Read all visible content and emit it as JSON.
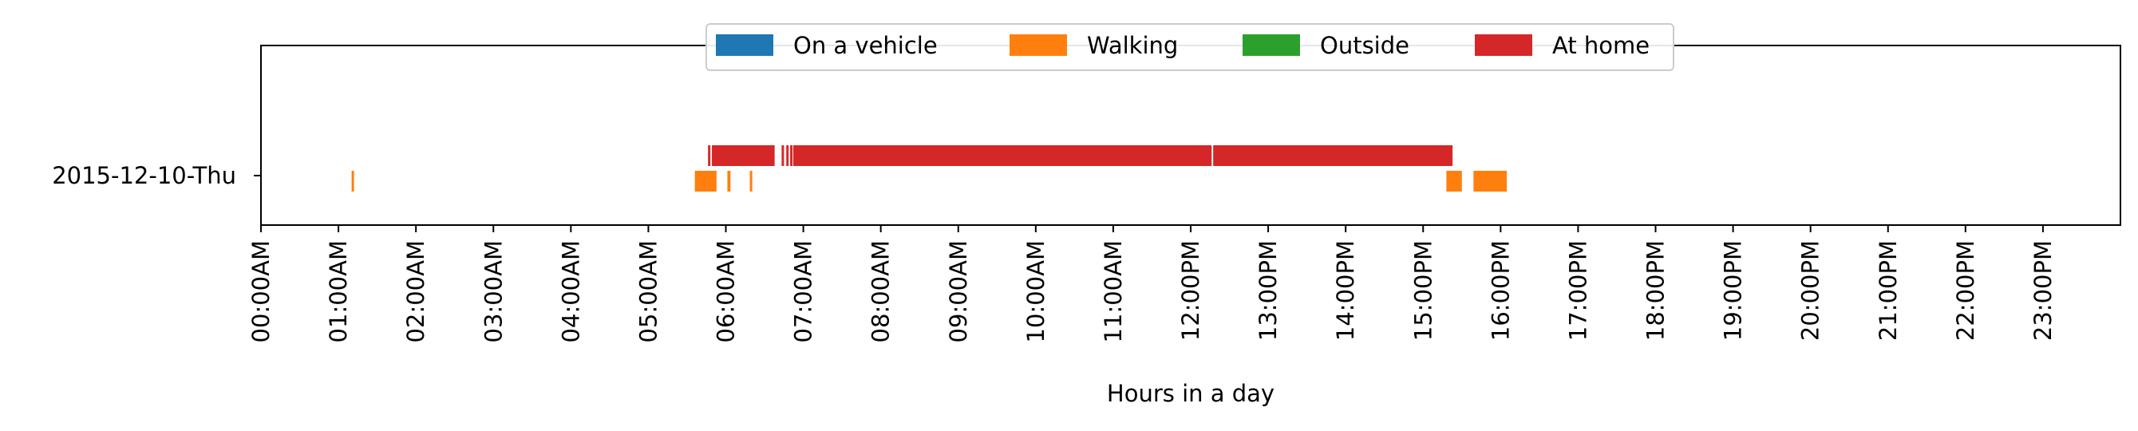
{
  "chart_data": {
    "type": "timeline",
    "xlabel": "Hours in a day",
    "xlim": [
      0,
      24
    ],
    "x_ticks": [
      {
        "value": 0,
        "label": "00:00AM"
      },
      {
        "value": 1,
        "label": "01:00AM"
      },
      {
        "value": 2,
        "label": "02:00AM"
      },
      {
        "value": 3,
        "label": "03:00AM"
      },
      {
        "value": 4,
        "label": "04:00AM"
      },
      {
        "value": 5,
        "label": "05:00AM"
      },
      {
        "value": 6,
        "label": "06:00AM"
      },
      {
        "value": 7,
        "label": "07:00AM"
      },
      {
        "value": 8,
        "label": "08:00AM"
      },
      {
        "value": 9,
        "label": "09:00AM"
      },
      {
        "value": 10,
        "label": "10:00AM"
      },
      {
        "value": 11,
        "label": "11:00AM"
      },
      {
        "value": 12,
        "label": "12:00PM"
      },
      {
        "value": 13,
        "label": "13:00PM"
      },
      {
        "value": 14,
        "label": "14:00PM"
      },
      {
        "value": 15,
        "label": "15:00PM"
      },
      {
        "value": 16,
        "label": "16:00PM"
      },
      {
        "value": 17,
        "label": "17:00PM"
      },
      {
        "value": 18,
        "label": "18:00PM"
      },
      {
        "value": 19,
        "label": "19:00PM"
      },
      {
        "value": 20,
        "label": "20:00PM"
      },
      {
        "value": 21,
        "label": "21:00PM"
      },
      {
        "value": 22,
        "label": "22:00PM"
      },
      {
        "value": 23,
        "label": "23:00PM"
      }
    ],
    "days": [
      "2015-12-10-Thu"
    ],
    "legend_position": "top-center",
    "series": [
      {
        "name": "On a vehicle",
        "color": "#1f77b4",
        "segments": []
      },
      {
        "name": "Walking",
        "color": "#ff7f0e",
        "segments": [
          [
            1.17,
            1.2
          ],
          [
            5.6,
            5.88
          ],
          [
            6.02,
            6.06
          ],
          [
            6.31,
            6.34
          ],
          [
            15.3,
            15.5
          ],
          [
            15.65,
            16.08
          ]
        ]
      },
      {
        "name": "Outside",
        "color": "#2ca02c",
        "segments": []
      },
      {
        "name": "At home",
        "color": "#d62728",
        "segments": [
          [
            5.77,
            5.8
          ],
          [
            5.82,
            6.63
          ],
          [
            6.72,
            6.75
          ],
          [
            6.78,
            6.8
          ],
          [
            6.83,
            6.85
          ],
          [
            6.87,
            12.27
          ],
          [
            12.29,
            15.38
          ]
        ]
      }
    ]
  }
}
